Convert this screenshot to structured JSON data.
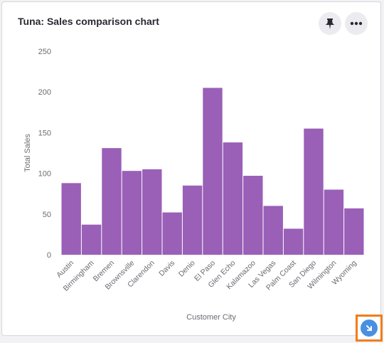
{
  "card": {
    "title": "Tuna: Sales comparison chart",
    "pin_icon": "pin-icon",
    "more_icon": "more-horizontal-icon",
    "download_icon": "download-arrow-icon"
  },
  "colors": {
    "bar": "#9a5fb7",
    "axis_text": "#6b6b73",
    "download_accent": "#4a90e2",
    "highlight": "#f07c1b"
  },
  "chart_data": {
    "type": "bar",
    "title": "",
    "xlabel": "Customer City",
    "ylabel": "Total Sales",
    "categories": [
      "Austin",
      "Birmingham",
      "Bremen",
      "Brownsville",
      "Clarendon",
      "Davis",
      "Denio",
      "El Paso",
      "Glen Echo",
      "Kalamazoo",
      "Las Vegas",
      "Palm Coast",
      "San Diego",
      "Wilmington",
      "Wyoming"
    ],
    "values": [
      88,
      37,
      131,
      103,
      105,
      52,
      85,
      205,
      138,
      97,
      60,
      32,
      155,
      80,
      57
    ],
    "ylim": [
      0,
      250
    ],
    "yticks": [
      0,
      50,
      100,
      150,
      200,
      250
    ],
    "grid": false,
    "legend": "none"
  }
}
